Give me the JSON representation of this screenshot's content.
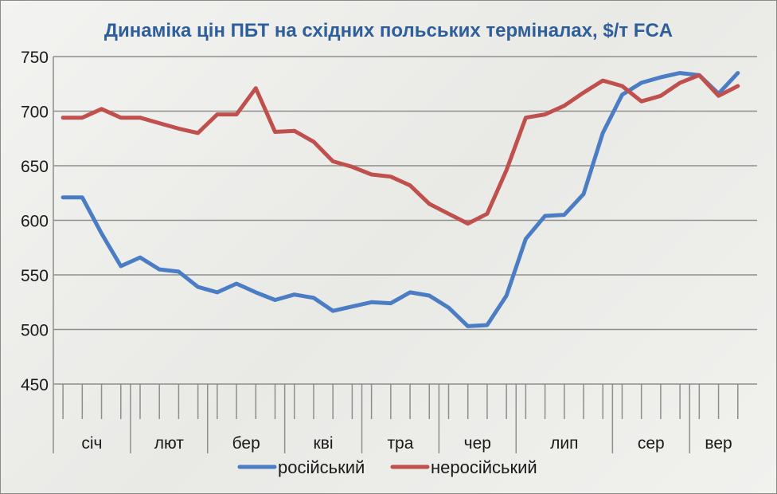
{
  "chart_data": {
    "type": "line",
    "title": "Динаміка цін ПБТ на східних польських терміналах, $/т FCA",
    "xlabel": "",
    "ylabel": "",
    "ylim": [
      450,
      750
    ],
    "yticks": [
      450,
      500,
      550,
      600,
      650,
      700,
      750
    ],
    "grid": true,
    "legend": "bottom",
    "months": [
      {
        "label": "січ",
        "weeks": 4
      },
      {
        "label": "лют",
        "weeks": 4
      },
      {
        "label": "бер",
        "weeks": 4
      },
      {
        "label": "кві",
        "weeks": 4
      },
      {
        "label": "тра",
        "weeks": 4
      },
      {
        "label": "чер",
        "weeks": 4
      },
      {
        "label": "лип",
        "weeks": 5
      },
      {
        "label": "сер",
        "weeks": 4
      },
      {
        "label": "вер",
        "weeks": 3
      }
    ],
    "series": [
      {
        "name": "російський",
        "color": "#4a7dc4",
        "values": [
          621,
          621,
          588,
          558,
          566,
          555,
          553,
          539,
          534,
          542,
          534,
          527,
          532,
          529,
          517,
          521,
          525,
          524,
          534,
          531,
          520,
          503,
          504,
          531,
          583,
          604,
          605,
          624,
          680,
          715,
          726,
          731,
          735,
          733,
          716,
          735
        ]
      },
      {
        "name": "неросійський",
        "color": "#c0504d",
        "values": [
          694,
          694,
          702,
          694,
          694,
          689,
          684,
          680,
          697,
          697,
          721,
          681,
          682,
          672,
          654,
          649,
          642,
          640,
          632,
          615,
          606,
          597,
          606,
          646,
          694,
          697,
          705,
          717,
          728,
          723,
          709,
          714,
          726,
          733,
          714,
          723
        ]
      }
    ]
  }
}
